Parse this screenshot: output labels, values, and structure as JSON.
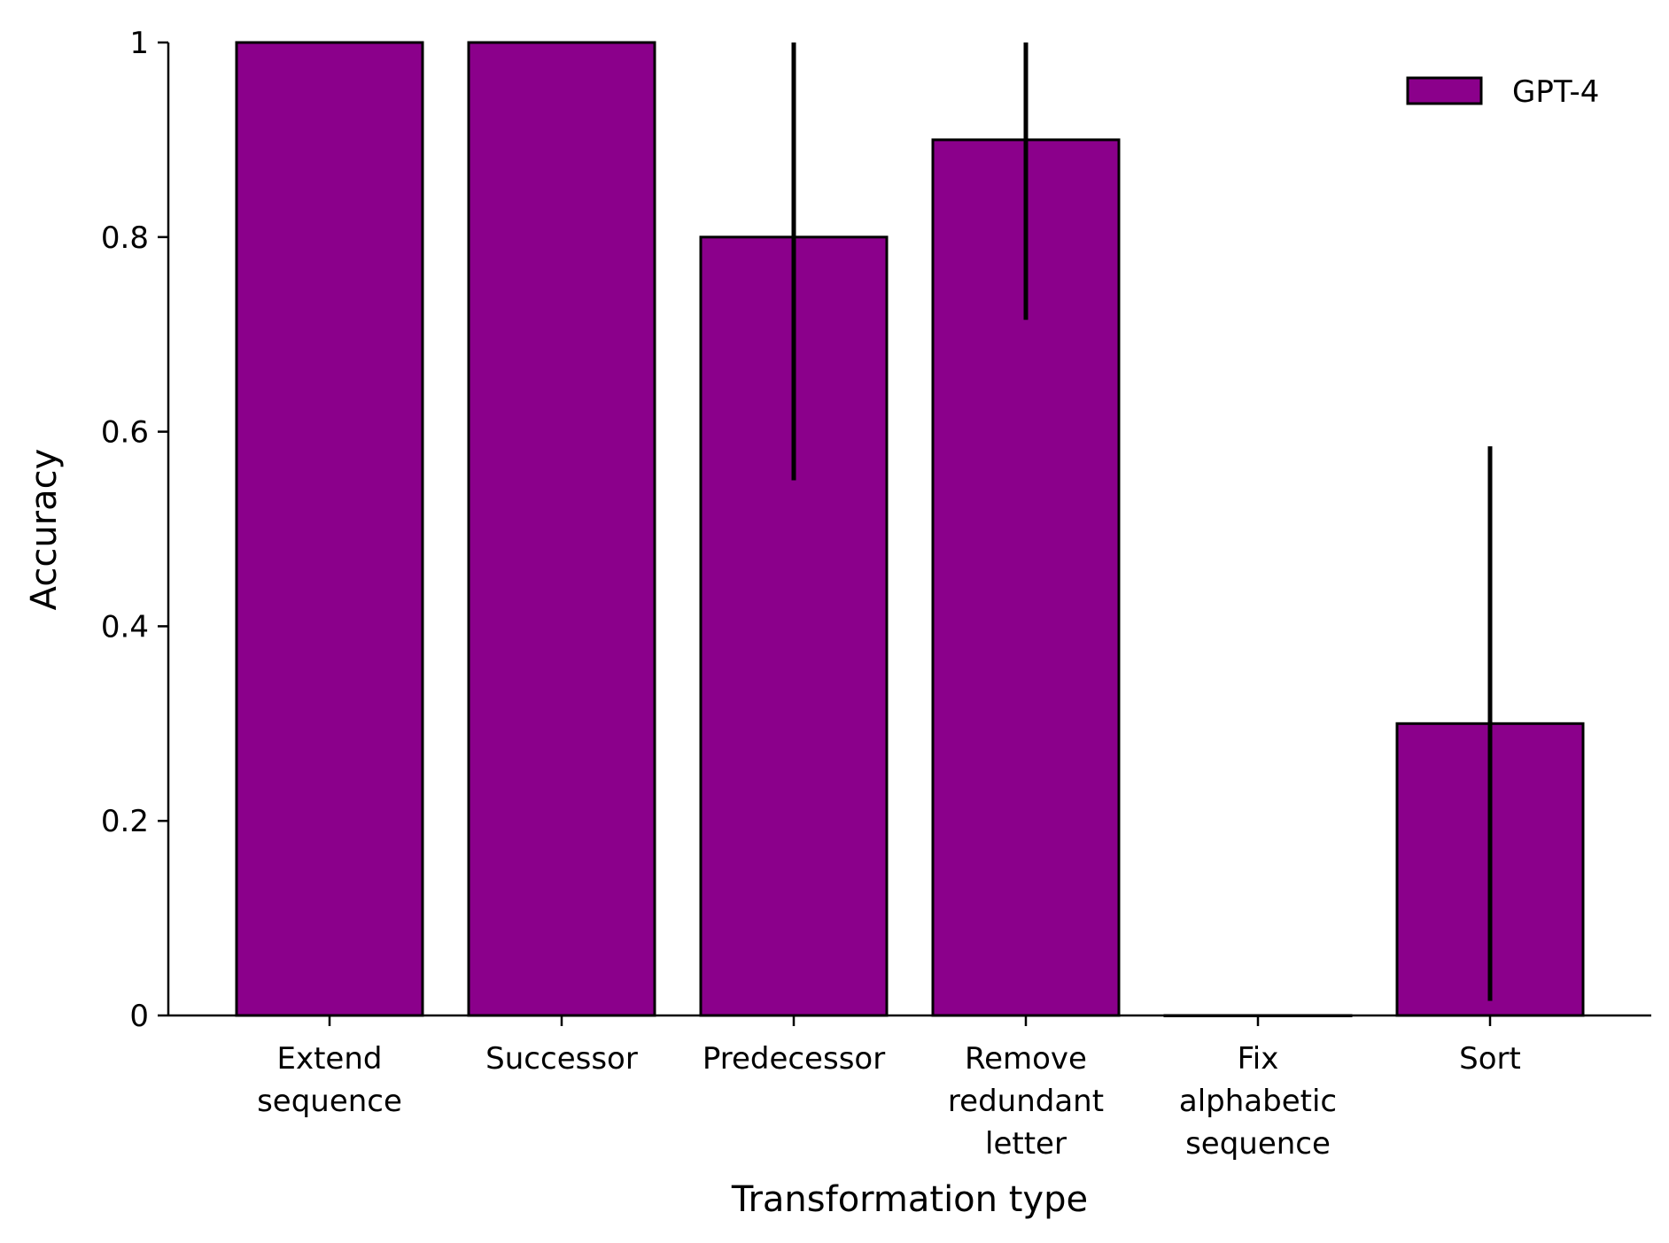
{
  "chart_data": {
    "type": "bar",
    "categories": [
      [
        "Extend",
        "sequence"
      ],
      [
        "Successor"
      ],
      [
        "Predecessor"
      ],
      [
        "Remove",
        "redundant",
        "letter"
      ],
      [
        "Fix",
        "alphabetic",
        "sequence"
      ],
      [
        "Sort"
      ]
    ],
    "series": [
      {
        "name": "GPT-4",
        "color": "#8b008b",
        "values": [
          1.0,
          1.0,
          0.8,
          0.9,
          0.0,
          0.3
        ],
        "error_low": [
          null,
          null,
          0.55,
          0.715,
          null,
          0.015
        ],
        "error_high": [
          null,
          null,
          1.0,
          1.0,
          null,
          0.585
        ]
      }
    ],
    "xlabel": "Transformation type",
    "ylabel": "Accuracy",
    "ylim": [
      0,
      1
    ],
    "yticks": [
      0,
      0.2,
      0.4,
      0.6,
      0.8,
      1
    ],
    "ytick_labels": [
      "0",
      "0.2",
      "0.4",
      "0.6",
      "0.8",
      "1"
    ],
    "grid": false,
    "legend_position": "top-right"
  }
}
